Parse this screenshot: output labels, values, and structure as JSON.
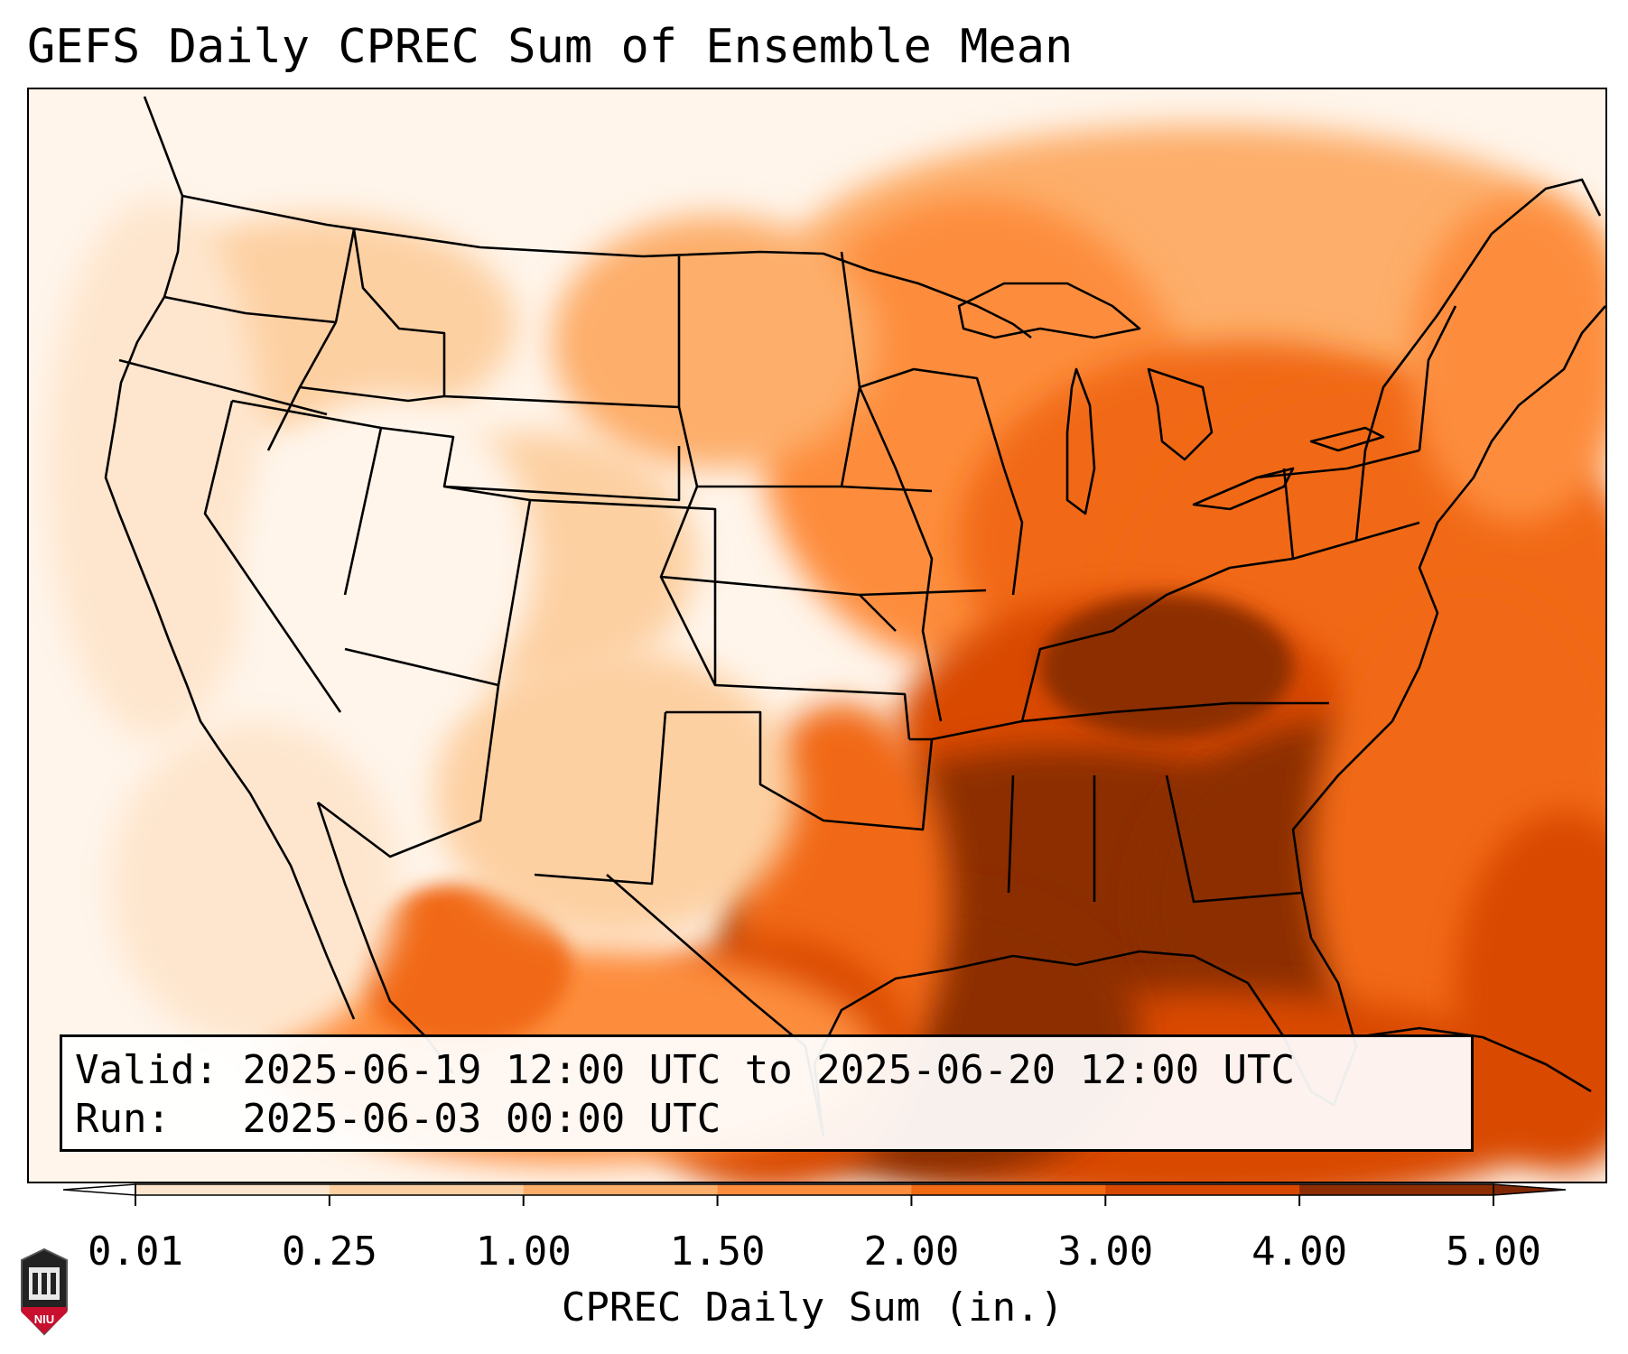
{
  "title": "GEFS Daily CPREC Sum of Ensemble Mean",
  "info": {
    "valid_label": "Valid:",
    "valid_value": "2025-06-19 12:00 UTC to 2025-06-20 12:00 UTC",
    "run_label": "Run:",
    "run_value": "2025-06-03 00:00 UTC"
  },
  "colorbar": {
    "label": "CPREC Daily Sum (in.)",
    "ticks": [
      "0.01",
      "0.25",
      "1.00",
      "1.50",
      "2.00",
      "3.00",
      "4.00",
      "5.00"
    ],
    "colors": [
      "#fff5eb",
      "#fee6ce",
      "#fdd0a2",
      "#fdae6b",
      "#fd8d3c",
      "#f16913",
      "#d94801",
      "#8c2d04"
    ],
    "under_color": "#ffffff",
    "over_color": "#7f2704"
  },
  "logo": {
    "text": "NIU",
    "color": "#c8102e"
  }
}
